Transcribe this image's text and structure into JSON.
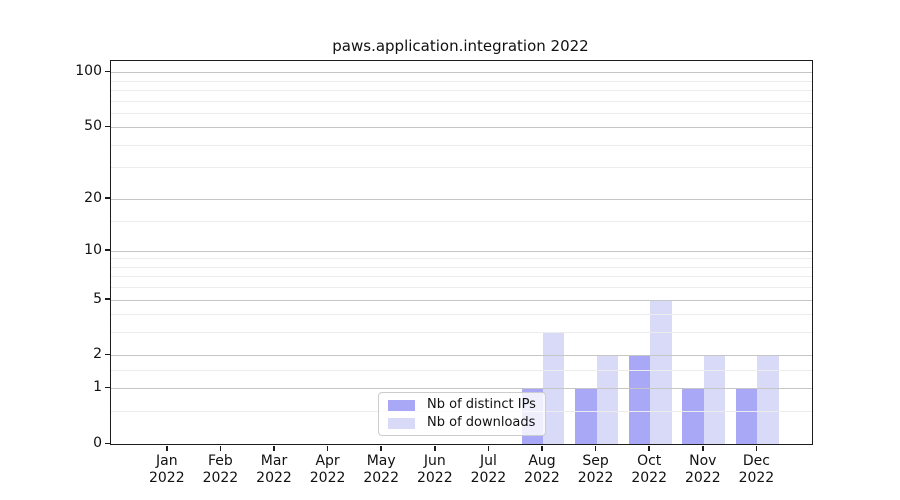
{
  "title": "paws.application.integration 2022",
  "chart_data": {
    "type": "bar",
    "title": "paws.application.integration 2022",
    "x_months": [
      "Jan",
      "Feb",
      "Mar",
      "Apr",
      "May",
      "Jun",
      "Jul",
      "Aug",
      "Sep",
      "Oct",
      "Nov",
      "Dec"
    ],
    "x_year": "2022",
    "series": [
      {
        "name": "Nb of distinct IPs",
        "color": "#a8a8f6",
        "values": [
          0,
          0,
          0,
          0,
          0,
          0,
          0,
          1,
          1,
          2,
          1,
          1
        ]
      },
      {
        "name": "Nb of downloads",
        "color": "#d9d9f8",
        "values": [
          0,
          0,
          0,
          0,
          0,
          0,
          0,
          3,
          2,
          5,
          2,
          2
        ]
      }
    ],
    "y_axis": {
      "scale": "log1p",
      "ticks": [
        0,
        1,
        2,
        5,
        10,
        20,
        50,
        100
      ],
      "minor_gridlines": [
        0.5,
        1.5,
        3,
        4,
        6,
        7,
        8,
        9,
        15,
        30,
        40,
        60,
        70,
        80,
        90
      ],
      "max": 115
    },
    "legend_position": "lower center",
    "grid": true
  },
  "colors": {
    "bar_distinct_ips": "#a8a8f6",
    "bar_downloads": "#d9d9f8",
    "grid_major": "#c6c6c6",
    "grid_minor": "#ececec",
    "spine": "#1c1c1c",
    "text": "#111111",
    "legend_background": "rgba(255,255,255,0.8)"
  }
}
